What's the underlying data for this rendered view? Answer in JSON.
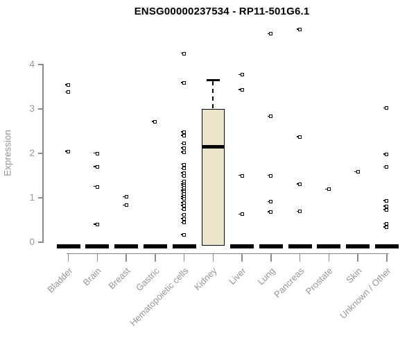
{
  "chart_data": {
    "type": "boxplot",
    "title": "ENSG00000237534 - RP11-501G6.1",
    "ylabel": "Expression",
    "yticks": [
      0,
      1,
      2,
      3,
      4
    ],
    "ylim": [
      0,
      4.9
    ],
    "grid": false,
    "legend": "none",
    "categories": [
      "Bladder",
      "Brain",
      "Breast",
      "Gastric",
      "Hematopoietic cells",
      "Kidney",
      "Liver",
      "Lung",
      "Pancreas",
      "Prostate",
      "Skin",
      "Unknown / Other"
    ],
    "series": [
      {
        "name": "Bladder",
        "zero_bar": true,
        "outliers": [
          3.54,
          3.38,
          2.04
        ]
      },
      {
        "name": "Brain",
        "zero_bar": true,
        "outliers": [
          2.0,
          1.7,
          1.25,
          0.4
        ]
      },
      {
        "name": "Breast",
        "zero_bar": true,
        "outliers": [
          1.02,
          0.83
        ]
      },
      {
        "name": "Gastric",
        "zero_bar": true,
        "outliers": [
          2.71
        ]
      },
      {
        "name": "Hematopoietic cells",
        "zero_bar": true,
        "outliers": [
          4.25,
          3.59,
          2.48,
          2.4,
          2.22,
          2.12,
          2.03,
          1.75,
          1.66,
          1.56,
          1.49,
          1.36,
          1.31,
          1.27,
          1.22,
          1.17,
          1.13,
          1.08,
          1.03,
          0.98,
          0.89,
          0.82,
          0.74,
          0.61,
          0.53,
          0.44,
          0.17
        ]
      },
      {
        "name": "Kidney",
        "zero_bar": false,
        "outliers": [],
        "box": {
          "q1": 0,
          "median": 2.15,
          "q3": 3.0,
          "whisker_low": 0,
          "whisker_high": 3.65
        }
      },
      {
        "name": "Liver",
        "zero_bar": true,
        "outliers": [
          3.77,
          3.43,
          1.5,
          0.63
        ]
      },
      {
        "name": "Lung",
        "zero_bar": true,
        "outliers": [
          4.69,
          2.83,
          1.5,
          0.91,
          0.68
        ]
      },
      {
        "name": "Pancreas",
        "zero_bar": true,
        "outliers": [
          4.79,
          2.37,
          1.31,
          0.69
        ]
      },
      {
        "name": "Prostate",
        "zero_bar": true,
        "outliers": [
          1.19
        ]
      },
      {
        "name": "Skin",
        "zero_bar": true,
        "outliers": [
          1.58
        ]
      },
      {
        "name": "Unknown / Other",
        "zero_bar": true,
        "outliers": [
          3.02,
          1.98,
          1.69,
          0.93,
          0.81,
          0.73,
          0.41,
          0.34
        ]
      }
    ],
    "colors": {
      "box_fill": "#EBE5CB",
      "box_border": "#000000",
      "point": "#000000",
      "axis_line": "#8A8A8A",
      "axis_text": "#969696",
      "title_text": "#000000",
      "background": "#FFFFFF"
    }
  }
}
